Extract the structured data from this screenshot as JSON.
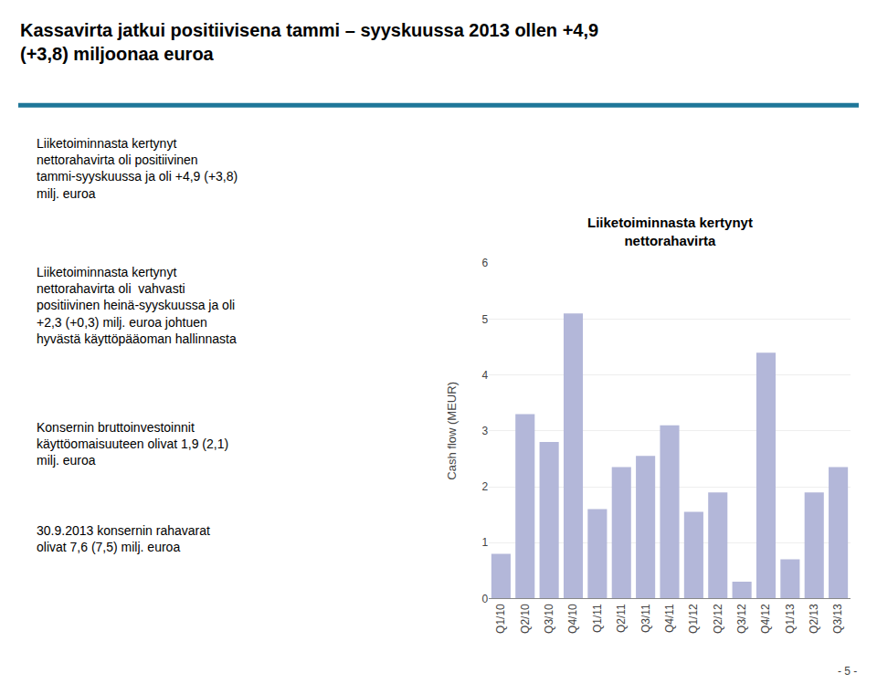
{
  "title": "Kassavirta jatkui positiivisena tammi – syyskuussa 2013 ollen +4,9\n(+3,8) miljoonaa euroa",
  "annotations": [
    "Liiketoiminnasta kertynyt\nnettorahavirta oli positiivinen\ntammi-syyskuussa ja oli +4,9 (+3,8)\nmilj. euroa",
    "Liiketoiminnasta kertynyt\nnettorahavirta oli  vahvasti\npositiivinen heinä-syyskuussa ja oli\n+2,3 (+0,3) milj. euroa johtuen\nhyvästä käyttöpääoman hallinnasta",
    "Konsernin bruttoinvestoinnit\nkäyttöomaisuuteen olivat 1,9 (2,1)\nmilj. euroa",
    "30.9.2013 konsernin rahavarat\nolivat 7,6 (7,5) milj. euroa",
    "- 5 -"
  ],
  "chart_data": {
    "type": "bar",
    "title": "Liiketoiminnasta kertynyt\nnettorahavirta",
    "ylabel": "Cash flow (MEUR)",
    "categories": [
      "Q1/10",
      "Q2/10",
      "Q3/10",
      "Q4/10",
      "Q1/11",
      "Q2/11",
      "Q3/11",
      "Q4/11",
      "Q1/12",
      "Q2/12",
      "Q3/12",
      "Q4/12",
      "Q1/13",
      "Q2/13",
      "Q3/13"
    ],
    "values": [
      0.8,
      3.3,
      2.8,
      5.1,
      1.6,
      2.35,
      2.55,
      3.1,
      1.55,
      1.9,
      0.3,
      4.4,
      0.7,
      1.9,
      2.35
    ],
    "color": "#b3b7d9",
    "ylim": [
      0,
      6
    ],
    "yticks": [
      0,
      1,
      2,
      3,
      4,
      5,
      6
    ],
    "grid": true
  }
}
